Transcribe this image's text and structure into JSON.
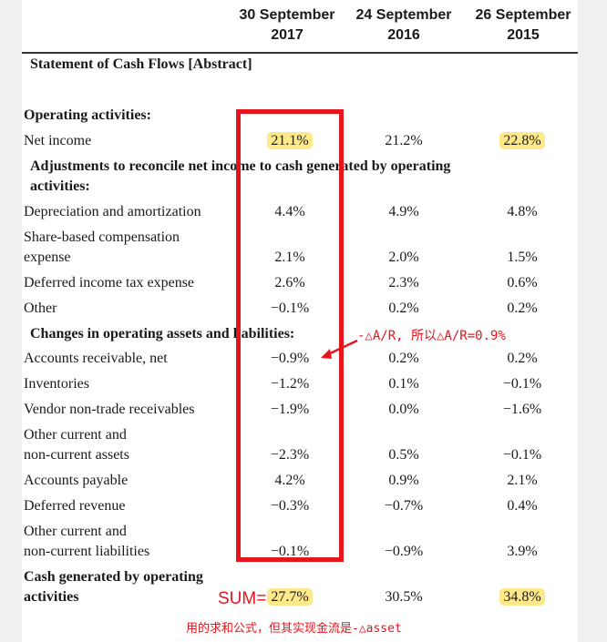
{
  "columns": [
    "30 September\n2017",
    "24 September\n2016",
    "26 September\n2015"
  ],
  "section_title": "Statement of Cash Flows [Abstract]",
  "operating_header": "Operating activities:",
  "net_income": {
    "label": "Net income",
    "values": [
      "21.1%",
      "21.2%",
      "22.8%"
    ]
  },
  "adjustments_header_line1": "Adjustments to reconcile net income to cash generated by operating",
  "adjustments_header_line2": "activities:",
  "rows_adjust": [
    {
      "label": "Depreciation and amortization",
      "values": [
        "4.4%",
        "4.9%",
        "4.8%"
      ]
    },
    {
      "label_line1": "Share-based compensation",
      "label_line2": "expense",
      "values": [
        "2.1%",
        "2.0%",
        "1.5%"
      ]
    },
    {
      "label": "Deferred income tax expense",
      "values": [
        "2.6%",
        "2.3%",
        "0.6%"
      ]
    },
    {
      "label": "Other",
      "values": [
        "−0.1%",
        "0.2%",
        "0.2%"
      ]
    }
  ],
  "changes_header": "Changes in operating assets and liabilities:",
  "rows_changes": [
    {
      "label": "Accounts receivable, net",
      "values": [
        "−0.9%",
        "0.2%",
        "0.2%"
      ]
    },
    {
      "label": "Inventories",
      "values": [
        "−1.2%",
        "0.1%",
        "−0.1%"
      ]
    },
    {
      "label": "Vendor non-trade receivables",
      "values": [
        "−1.9%",
        "0.0%",
        "−1.6%"
      ]
    },
    {
      "label_line1": "Other current and",
      "label_line2": "non-current assets",
      "values": [
        "−2.3%",
        "0.5%",
        "−0.1%"
      ]
    },
    {
      "label": "Accounts payable",
      "values": [
        "4.2%",
        "0.9%",
        "2.1%"
      ]
    },
    {
      "label": "Deferred revenue",
      "values": [
        "−0.3%",
        "−0.7%",
        "0.4%"
      ]
    },
    {
      "label_line1": "Other current and",
      "label_line2": "non-current liabilities",
      "values": [
        "−0.1%",
        "−0.9%",
        "3.9%"
      ]
    }
  ],
  "cash_generated": {
    "label_line1": "Cash generated by operating",
    "label_line2": "activities",
    "values": [
      "27.7%",
      "30.5%",
      "34.8%"
    ]
  },
  "annotations": {
    "delta_note": "-△A/R, 所以△A/R=0.9%",
    "sum_label": "SUM=",
    "bottom_note": "用的求和公式，但其实现金流是-△asset"
  },
  "colors": {
    "highlight": "#fde98a",
    "annotation_red": "#e8141b"
  }
}
